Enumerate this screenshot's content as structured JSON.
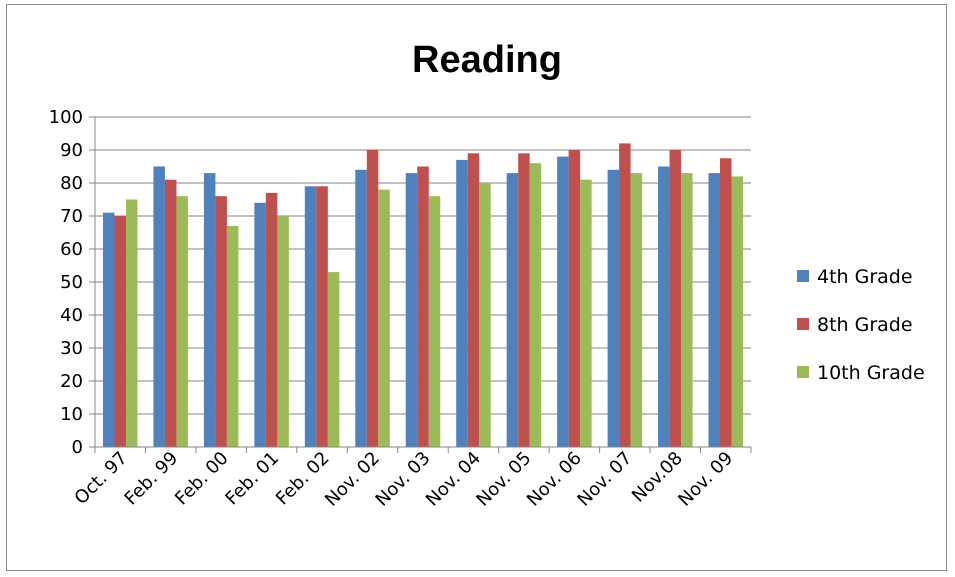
{
  "chart_data": {
    "type": "bar",
    "title": "Reading",
    "categories": [
      "Oct. 97",
      "Feb. 99",
      "Feb. 00",
      "Feb. 01",
      "Feb. 02",
      "Nov. 02",
      "Nov. 03",
      "Nov. 04",
      "Nov. 05",
      "Nov. 06",
      "Nov. 07",
      "Nov.08",
      "Nov. 09"
    ],
    "series": [
      {
        "name": "4th Grade",
        "color": "#4f81bd",
        "values": [
          71,
          85,
          83,
          74,
          79,
          84,
          83,
          87,
          83,
          88,
          84,
          85,
          83
        ]
      },
      {
        "name": "8th Grade",
        "color": "#c0504d",
        "values": [
          70,
          81,
          76,
          77,
          79,
          90,
          85,
          89,
          89,
          90,
          92,
          90,
          87.5
        ]
      },
      {
        "name": "10th Grade",
        "color": "#9bbb59",
        "values": [
          75,
          76,
          67,
          70,
          53,
          78,
          76,
          80,
          86,
          81,
          83,
          83,
          82
        ]
      }
    ],
    "ylim": [
      0,
      100
    ],
    "yticks": [
      0,
      10,
      20,
      30,
      40,
      50,
      60,
      70,
      80,
      90,
      100
    ],
    "grid": true,
    "legend": "right"
  }
}
